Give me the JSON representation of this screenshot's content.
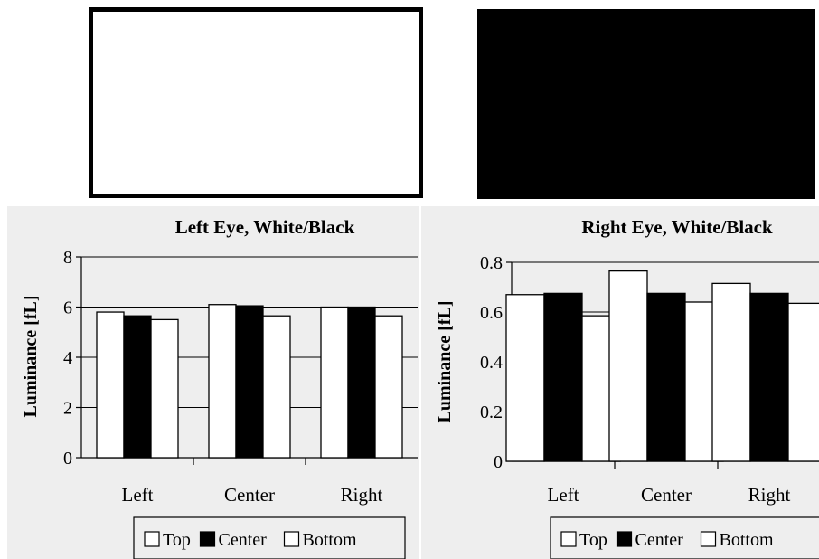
{
  "panels": {
    "left_swatch_color": "#ffffff",
    "right_swatch_color": "#000000"
  },
  "colors": {
    "plot_bg": "#eeeeee",
    "bar_white": "#ffffff",
    "bar_black": "#000000",
    "stroke": "#000000"
  },
  "chart_data": [
    {
      "type": "bar",
      "title": "Left Eye, White/Black",
      "xlabel": "",
      "ylabel": "Luminance [fL]",
      "ylim": [
        0,
        8
      ],
      "yticks": [
        0,
        2,
        4,
        6,
        8
      ],
      "ytick_labels": [
        "0",
        "2",
        "4",
        "6",
        "8"
      ],
      "categories": [
        "Left",
        "Center",
        "Right"
      ],
      "series": [
        {
          "name": "Top",
          "color": "#ffffff",
          "values": [
            5.8,
            6.1,
            6.0
          ]
        },
        {
          "name": "Center",
          "color": "#000000",
          "values": [
            5.65,
            6.05,
            6.0
          ]
        },
        {
          "name": "Bottom",
          "color": "#ffffff",
          "values": [
            5.5,
            5.65,
            5.65
          ]
        }
      ],
      "grid": true,
      "legend": "bottom-right"
    },
    {
      "type": "bar",
      "title": "Right Eye, White/Black",
      "xlabel": "",
      "ylabel": "Luminance [fL]",
      "ylim": [
        0,
        0.8
      ],
      "yticks": [
        0,
        0.2,
        0.4,
        0.6,
        0.8
      ],
      "ytick_labels": [
        "0",
        "0.2",
        "0.4",
        "0.6",
        "0.8"
      ],
      "categories": [
        "Left",
        "Center",
        "Right"
      ],
      "series": [
        {
          "name": "Top",
          "color": "#ffffff",
          "values": [
            0.67,
            0.765,
            0.715
          ]
        },
        {
          "name": "Center",
          "color": "#000000",
          "values": [
            0.675,
            0.675,
            0.675
          ]
        },
        {
          "name": "Bottom",
          "color": "#ffffff",
          "values": [
            0.585,
            0.64,
            0.635
          ]
        }
      ],
      "grid": true,
      "legend": "bottom-right"
    }
  ]
}
